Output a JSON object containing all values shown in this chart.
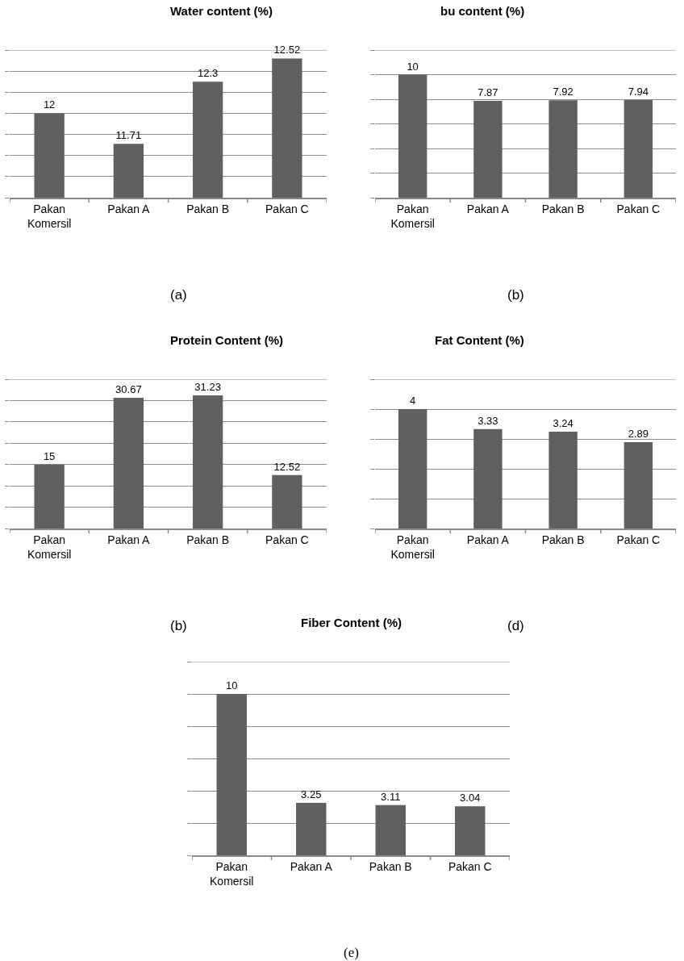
{
  "chart_data": [
    {
      "type": "bar",
      "title": "Water content (%)",
      "categories": [
        "Pakan\nKomersil",
        "Pakan A",
        "Pakan B",
        "Pakan C"
      ],
      "values": [
        12,
        11.71,
        12.3,
        12.52
      ],
      "color": "#606060",
      "ylim": [
        11.2,
        12.6
      ],
      "yticks": [
        {
          "value": 11.2,
          "label": null
        },
        {
          "value": 11.4,
          "label": null
        },
        {
          "value": 11.6,
          "label": null
        },
        {
          "value": 11.8,
          "label": null
        },
        {
          "value": 12.0,
          "label": null
        },
        {
          "value": 12.2,
          "label": null
        },
        {
          "value": 12.4,
          "label": null
        },
        {
          "value": 12.6,
          "label": null
        }
      ],
      "grid": "y",
      "tick_labels": "x",
      "data_labels": true,
      "annotations": [
        "(a)"
      ]
    },
    {
      "type": "bar",
      "title": "bu content (%)",
      "categories": [
        "Pakan\nKomersil",
        "Pakan A",
        "Pakan B",
        "Pakan C"
      ],
      "values": [
        10,
        7.87,
        7.92,
        7.94
      ],
      "color": "#606060",
      "ylim": [
        0,
        12
      ],
      "yticks": [
        {
          "value": 0,
          "label": null
        },
        {
          "value": 2,
          "label": null
        },
        {
          "value": 4,
          "label": null
        },
        {
          "value": 6,
          "label": null
        },
        {
          "value": 8,
          "label": null
        },
        {
          "value": 10,
          "label": null
        },
        {
          "value": 12,
          "label": null
        }
      ],
      "grid": "y",
      "tick_labels": "x",
      "data_labels": true,
      "annotations": [
        "(b)"
      ]
    },
    {
      "type": "bar",
      "title": "Protein Content (%)",
      "categories": [
        "Pakan\nKomersil",
        "Pakan A",
        "Pakan B",
        "Pakan C"
      ],
      "values": [
        15,
        30.67,
        31.23,
        12.52
      ],
      "color": "#606060",
      "ylim": [
        0,
        35
      ],
      "yticks": [
        {
          "value": 0,
          "label": null
        },
        {
          "value": 5,
          "label": null
        },
        {
          "value": 10,
          "label": null
        },
        {
          "value": 15,
          "label": null
        },
        {
          "value": 20,
          "label": null
        },
        {
          "value": 25,
          "label": null
        },
        {
          "value": 30,
          "label": null
        },
        {
          "value": 35,
          "label": null
        }
      ],
      "grid": "y",
      "tick_labels": "x",
      "data_labels": true,
      "annotations": [
        "(b)"
      ]
    },
    {
      "type": "bar",
      "title": "Fat Content (%)",
      "categories": [
        "Pakan\nKomersil",
        "Pakan A",
        "Pakan B",
        "Pakan C"
      ],
      "values": [
        4,
        3.33,
        3.24,
        2.89
      ],
      "color": "#606060",
      "ylim": [
        0,
        5
      ],
      "yticks": [
        {
          "value": 0,
          "label": null
        },
        {
          "value": 1,
          "label": null
        },
        {
          "value": 2,
          "label": null
        },
        {
          "value": 3,
          "label": null
        },
        {
          "value": 4,
          "label": null
        },
        {
          "value": 5,
          "label": null
        }
      ],
      "grid": "y",
      "tick_labels": "x",
      "data_labels": true,
      "annotations": [
        "(d)"
      ]
    },
    {
      "type": "bar",
      "title": "Fiber Content (%)",
      "categories": [
        "Pakan\nKomersil",
        "Pakan A",
        "Pakan B",
        "Pakan C"
      ],
      "values": [
        10,
        3.25,
        3.11,
        3.04
      ],
      "color": "#606060",
      "ylim": [
        0,
        12
      ],
      "yticks": [
        {
          "value": 0,
          "label": null
        },
        {
          "value": 2,
          "label": null
        },
        {
          "value": 4,
          "label": null
        },
        {
          "value": 6,
          "label": null
        },
        {
          "value": 8,
          "label": null
        },
        {
          "value": 10,
          "label": null
        },
        {
          "value": 12,
          "label": null
        }
      ],
      "grid": "y",
      "tick_labels": "x",
      "data_labels": true,
      "annotations": [
        "(e)"
      ]
    }
  ]
}
